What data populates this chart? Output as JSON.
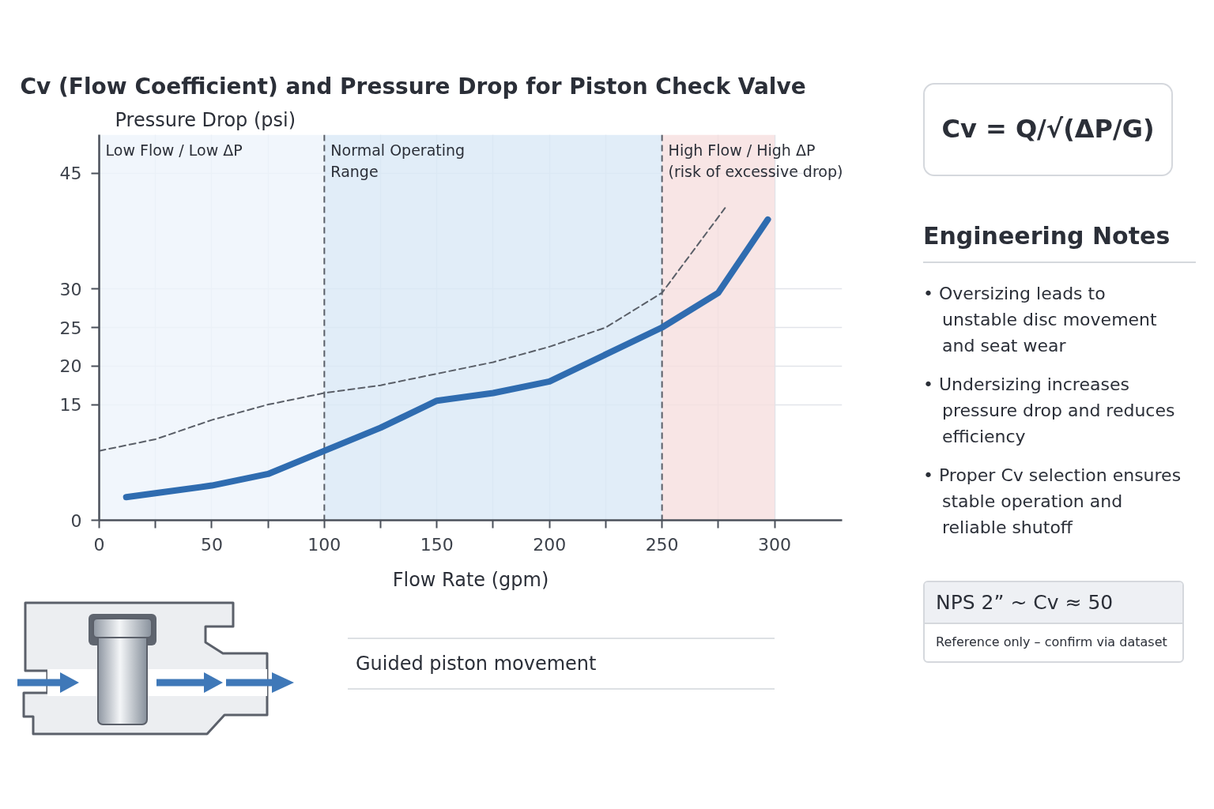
{
  "chart_data": {
    "type": "line",
    "title": "Cv (Flow Coefficient) and Pressure Drop for Piston Check Valve",
    "xlabel": "Flow Rate (gpm)",
    "ylabel": "Pressure Drop (psi)",
    "xlim": [
      0,
      330
    ],
    "xticks": [
      0,
      {
        "value": 25,
        "label": null
      },
      50,
      {
        "value": 75,
        "label": null
      },
      100,
      {
        "value": 125,
        "label": null
      },
      150,
      {
        "value": 175,
        "label": null
      },
      200,
      {
        "value": 225,
        "label": null
      },
      250,
      {
        "value": 275,
        "label": null
      },
      300
    ],
    "ylim": [
      0,
      50
    ],
    "yticks": [
      0,
      15,
      20,
      25,
      30,
      45
    ],
    "grid": true,
    "line_style": "solid",
    "series": [
      {
        "color": "#2f6cb0",
        "x": [
          12,
          25,
          50,
          75,
          100,
          125,
          150,
          175,
          200,
          225,
          250,
          275,
          297
        ],
        "values": [
          3,
          3.5,
          4.5,
          6,
          9,
          12,
          15.5,
          16.5,
          18,
          21.5,
          25,
          29.5,
          39
        ]
      },
      {
        "color": "#5a5f68",
        "line_style": "dashed",
        "x": [
          0,
          25,
          50,
          75,
          100,
          125,
          150,
          175,
          200,
          225,
          250,
          278
        ],
        "values": [
          9,
          10.5,
          13,
          15,
          16.5,
          17.5,
          19,
          20.5,
          22.5,
          25,
          29.5,
          40.5
        ]
      }
    ],
    "bands": [
      {
        "axis": "x",
        "from": 0,
        "to": 100,
        "label": "Low Flow / Low ΔP",
        "color": "#eef4fb"
      },
      {
        "axis": "x",
        "from": 100,
        "to": 250,
        "label": "Normal Operating Range",
        "color": "#d9e8f6"
      },
      {
        "axis": "x",
        "from": 250,
        "to": 300,
        "label": "High Flow / High ΔP\n(risk of excessive drop)",
        "color": "#f6dfdf"
      }
    ],
    "annotations": [
      "Cv = Q/√(ΔP/G)",
      "Engineering Notes",
      "• Oversizing leads to unstable disc movement and seat wear",
      "• Undersizing increases pressure drop and reduces efficiency",
      "• Proper Cv selection ensures stable operation and reliable shutoff",
      "NPS 2” ~ Cv ≈ 50",
      "Reference only – confirm via dataset",
      "Guided piston movement"
    ]
  }
}
